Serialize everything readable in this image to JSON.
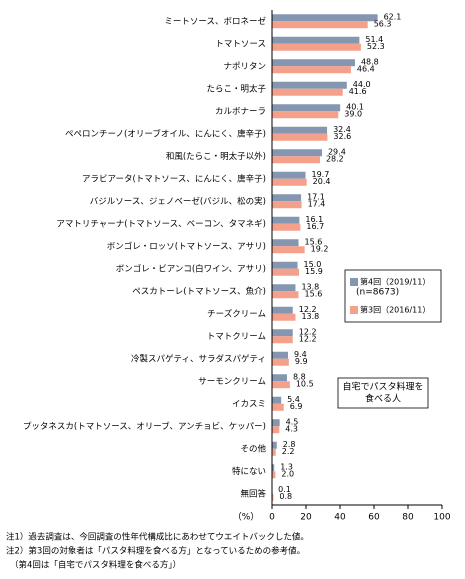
{
  "chart_data": {
    "type": "bar",
    "orientation": "horizontal",
    "categories": [
      "ミートソース、ボロネーゼ",
      "トマトソース",
      "ナポリタン",
      "たらこ・明太子",
      "カルボナーラ",
      "ペペロンチーノ(オリーブオイル、にんにく、唐辛子)",
      "和風(たらこ・明太子以外)",
      "アラビアータ(トマトソース、にんにく、唐辛子)",
      "バジルソース、ジェノベーゼ(バジル、松の実)",
      "アマトリチャーナ(トマトソース、ベーコン、タマネギ)",
      "ボンゴレ・ロッソ(トマトソース、アサリ)",
      "ボンゴレ・ビアンコ(白ワイン、アサリ)",
      "ペスカトーレ(トマトソース、魚介)",
      "チーズクリーム",
      "トマトクリーム",
      "冷製スパゲティ、サラダスパゲティ",
      "サーモンクリーム",
      "イカスミ",
      "プッタネスカ(トマトソース、オリーブ、アンチョビ、ケッパー)",
      "その他",
      "特にない",
      "無回答"
    ],
    "series": [
      {
        "name": "第4回（2019/11）",
        "color": "#8496b0",
        "values": [
          62.1,
          51.4,
          48.8,
          44.0,
          40.1,
          32.4,
          29.4,
          19.7,
          17.1,
          16.1,
          15.6,
          15.0,
          13.8,
          12.2,
          12.2,
          9.4,
          8.8,
          5.4,
          4.5,
          2.8,
          1.3,
          0.1
        ],
        "value_labels": [
          "62.1",
          "51.4",
          "48.8",
          "44.0",
          "40.1",
          "32.4",
          "29.4",
          "19.7",
          "17.1",
          "16.1",
          "15.6",
          "15.0",
          "13.8",
          "12.2",
          "12.2",
          "9.4",
          "8.8",
          "5.4",
          "4.5",
          "2.8",
          "1.3",
          "0.1"
        ]
      },
      {
        "name": "第3回（2016/11）",
        "color": "#f4a08a",
        "values": [
          56.3,
          52.3,
          46.4,
          41.6,
          39.0,
          32.6,
          28.2,
          20.4,
          17.4,
          16.7,
          19.2,
          15.9,
          15.6,
          13.8,
          12.2,
          9.9,
          10.5,
          6.9,
          4.3,
          2.2,
          2.0,
          0.8
        ],
        "value_labels": [
          "56.3",
          "52.3",
          "46.4",
          "41.6",
          "39.0",
          "32.6",
          "28.2",
          "20.4",
          "17.4",
          "16.7",
          "19.2",
          "15.9",
          "15.6",
          "13.8",
          "12.2",
          "9.9",
          "10.5",
          "6.9",
          "4.3",
          "2.2",
          "2.0",
          "0.8"
        ]
      }
    ],
    "legend_note": "(n=8673)",
    "annotation": [
      "自宅でパスタ料理を",
      "食べる人"
    ],
    "xlabel": "（%）",
    "xlim": [
      0,
      100
    ],
    "xticks": [
      0,
      20,
      40,
      60,
      80,
      100
    ],
    "notes": [
      "注1）過去調査は、今回調査の性年代構成比にあわせてウエイトバックした値。",
      "注2）第3回の対象者は「パスタ料理を食べる方」となっているための参考値。",
      "（第4回は「自宅でパスタ料理を食べる方」）"
    ]
  }
}
